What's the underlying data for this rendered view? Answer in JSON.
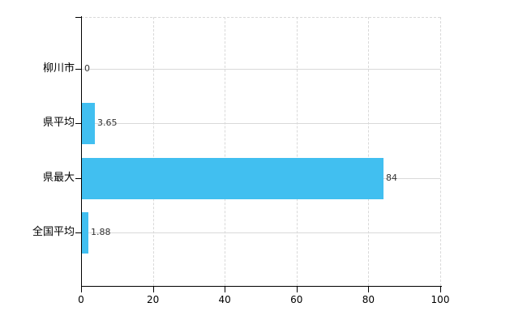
{
  "chart_data": {
    "type": "bar",
    "orientation": "horizontal",
    "title": "",
    "categories": [
      "柳川市",
      "県平均",
      "県最大",
      "全国平均"
    ],
    "values": [
      0,
      3.65,
      84,
      1.88
    ],
    "value_labels": [
      "0",
      "3.65",
      "84",
      "1.88"
    ],
    "xlim": [
      0,
      100
    ],
    "x_ticks": [
      0,
      20,
      40,
      60,
      80,
      100
    ],
    "grid": true,
    "legend_position": "none",
    "colors": {
      "bar": "#41bff0",
      "axis": "#000000",
      "gridline": "#d9d9d9",
      "category_text": "#000000",
      "value_text": "#333333"
    }
  }
}
